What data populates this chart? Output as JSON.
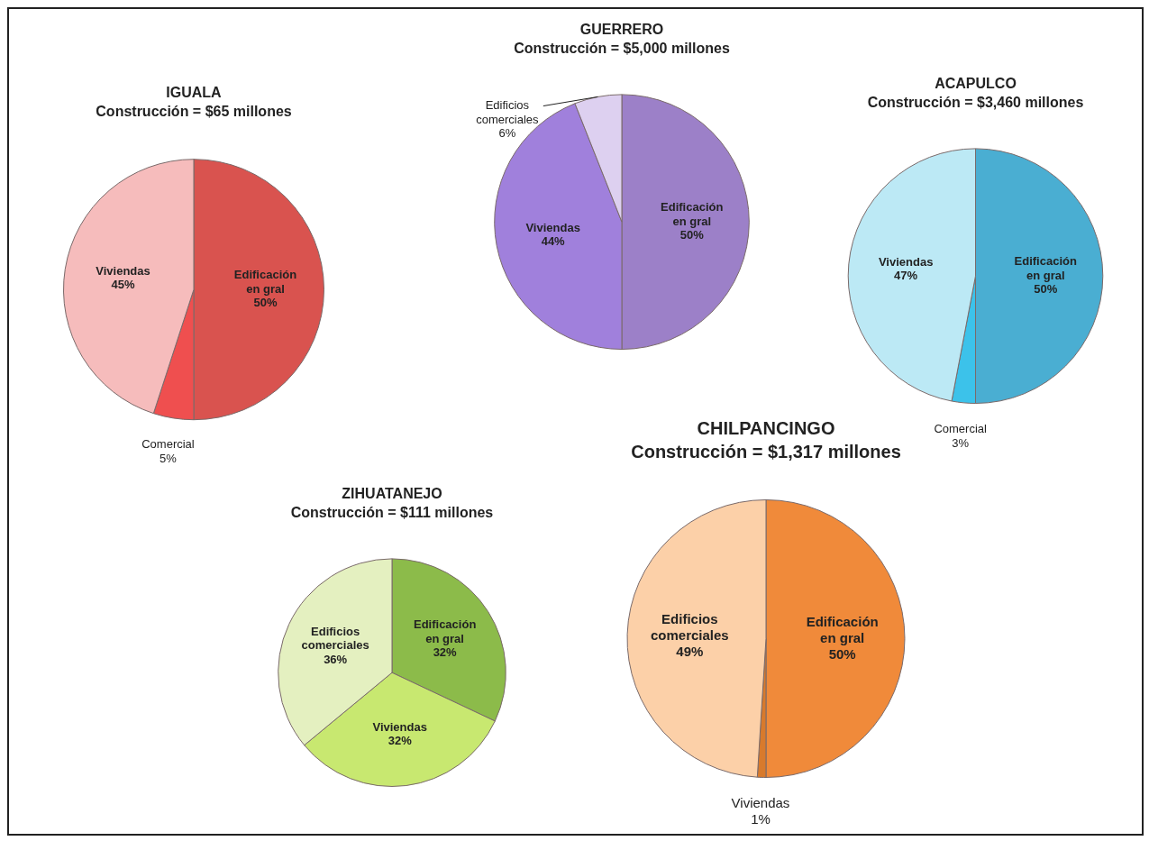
{
  "chart_data": [
    {
      "type": "pie",
      "title": "IGUALA",
      "subtitle": "Construcción = $65 millones",
      "categories": [
        "Edificación en gral",
        "Comercial",
        "Viviendas"
      ],
      "values": [
        50,
        5,
        45
      ],
      "value_labels": [
        "50%",
        "5%",
        "45%"
      ],
      "colors": [
        "#d9534f",
        "#ef4f4f",
        "#f6bcbc"
      ]
    },
    {
      "type": "pie",
      "title": "GUERRERO",
      "subtitle": "Construcción = $5,000 millones",
      "categories": [
        "Edificación en gral",
        "Viviendas",
        "Edificios comerciales"
      ],
      "values": [
        50,
        44,
        6
      ],
      "value_labels": [
        "50%",
        "44%",
        "6%"
      ],
      "colors": [
        "#9c80c8",
        "#a080dc",
        "#ddd0f0"
      ]
    },
    {
      "type": "pie",
      "title": "ACAPULCO",
      "subtitle": "Construcción = $3,460 millones",
      "categories": [
        "Edificación en gral",
        "Comercial",
        "Viviendas"
      ],
      "values": [
        50,
        3,
        47
      ],
      "value_labels": [
        "50%",
        "3%",
        "47%"
      ],
      "colors": [
        "#4aaed2",
        "#3cc2ea",
        "#bce9f5"
      ]
    },
    {
      "type": "pie",
      "title": "ZIHUATANEJO",
      "subtitle": "Construcción = $111 millones",
      "categories": [
        "Edificación en gral",
        "Viviendas",
        "Edificios comerciales"
      ],
      "values": [
        32,
        32,
        36
      ],
      "value_labels": [
        "32%",
        "32%",
        "36%"
      ],
      "colors": [
        "#8cbb4a",
        "#c8e870",
        "#e4f0c0"
      ]
    },
    {
      "type": "pie",
      "title": "CHILPANCINGO",
      "subtitle": "Construcción = $1,317 millones",
      "categories": [
        "Edificación en gral",
        "Viviendas",
        "Edificios comerciales"
      ],
      "values": [
        50,
        1,
        49
      ],
      "value_labels": [
        "50%",
        "1%",
        "49%"
      ],
      "colors": [
        "#f08a3a",
        "#d87a2c",
        "#fcd0a8"
      ]
    }
  ]
}
